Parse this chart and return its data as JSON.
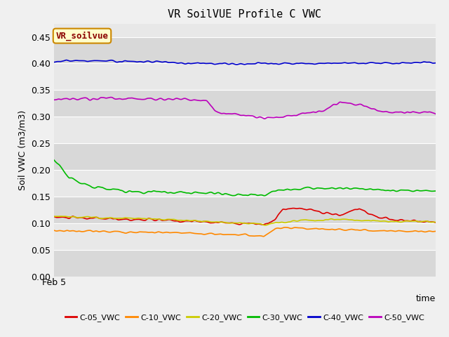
{
  "title": "VR SoilVUE Profile C VWC",
  "xlabel": "time",
  "ylabel": "Soil VWC (m3/m3)",
  "ylim": [
    0.0,
    0.475
  ],
  "yticks": [
    0.0,
    0.05,
    0.1,
    0.15,
    0.2,
    0.25,
    0.3,
    0.35,
    0.4,
    0.45
  ],
  "n_points": 500,
  "fig_facecolor": "#f0f0f0",
  "plot_bg_color": "#e8e8e8",
  "band_colors": [
    "#d8d8d8",
    "#e8e8e8"
  ],
  "series_order": [
    "C-05_VWC",
    "C-10_VWC",
    "C-20_VWC",
    "C-30_VWC",
    "C-40_VWC",
    "C-50_VWC"
  ],
  "series": {
    "C-05_VWC": {
      "color": "#dd0000",
      "noise": 0.003,
      "keypoints": [
        [
          0,
          0.111
        ],
        [
          0.3,
          0.105
        ],
        [
          0.55,
          0.098
        ],
        [
          0.57,
          0.1
        ],
        [
          0.6,
          0.125
        ],
        [
          0.65,
          0.128
        ],
        [
          0.7,
          0.12
        ],
        [
          0.75,
          0.115
        ],
        [
          0.8,
          0.128
        ],
        [
          0.85,
          0.11
        ],
        [
          0.92,
          0.105
        ],
        [
          1.0,
          0.102
        ]
      ]
    },
    "C-10_VWC": {
      "color": "#ff8800",
      "noise": 0.002,
      "keypoints": [
        [
          0,
          0.086
        ],
        [
          0.3,
          0.082
        ],
        [
          0.5,
          0.078
        ],
        [
          0.55,
          0.075
        ],
        [
          0.58,
          0.09
        ],
        [
          0.65,
          0.09
        ],
        [
          0.75,
          0.088
        ],
        [
          0.85,
          0.086
        ],
        [
          1.0,
          0.084
        ]
      ]
    },
    "C-20_VWC": {
      "color": "#cccc00",
      "noise": 0.002,
      "keypoints": [
        [
          0,
          0.113
        ],
        [
          0.25,
          0.108
        ],
        [
          0.5,
          0.1
        ],
        [
          0.55,
          0.097
        ],
        [
          0.58,
          0.1
        ],
        [
          0.65,
          0.105
        ],
        [
          0.75,
          0.108
        ],
        [
          0.85,
          0.104
        ],
        [
          1.0,
          0.102
        ]
      ]
    },
    "C-30_VWC": {
      "color": "#00bb00",
      "noise": 0.003,
      "keypoints": [
        [
          0,
          0.22
        ],
        [
          0.04,
          0.185
        ],
        [
          0.1,
          0.168
        ],
        [
          0.2,
          0.16
        ],
        [
          0.45,
          0.155
        ],
        [
          0.55,
          0.153
        ],
        [
          0.58,
          0.16
        ],
        [
          0.65,
          0.165
        ],
        [
          0.75,
          0.166
        ],
        [
          0.85,
          0.162
        ],
        [
          1.0,
          0.16
        ]
      ]
    },
    "C-40_VWC": {
      "color": "#0000cc",
      "noise": 0.002,
      "keypoints": [
        [
          0,
          0.404
        ],
        [
          0.1,
          0.405
        ],
        [
          0.25,
          0.404
        ],
        [
          0.35,
          0.401
        ],
        [
          0.45,
          0.399
        ],
        [
          0.55,
          0.4
        ],
        [
          0.65,
          0.4
        ],
        [
          0.8,
          0.401
        ],
        [
          1.0,
          0.402
        ]
      ]
    },
    "C-50_VWC": {
      "color": "#bb00bb",
      "noise": 0.003,
      "keypoints": [
        [
          0,
          0.333
        ],
        [
          0.2,
          0.334
        ],
        [
          0.35,
          0.333
        ],
        [
          0.4,
          0.33
        ],
        [
          0.43,
          0.308
        ],
        [
          0.5,
          0.302
        ],
        [
          0.55,
          0.298
        ],
        [
          0.6,
          0.3
        ],
        [
          0.65,
          0.305
        ],
        [
          0.7,
          0.31
        ],
        [
          0.75,
          0.325
        ],
        [
          0.8,
          0.323
        ],
        [
          0.85,
          0.312
        ],
        [
          0.9,
          0.308
        ],
        [
          1.0,
          0.308
        ]
      ]
    }
  },
  "legend_label_box": "VR_soilvue",
  "legend_box_facecolor": "#ffffcc",
  "legend_box_edgecolor": "#cc8800",
  "x_tick_label": "Feb 5",
  "linewidth": 1.2
}
